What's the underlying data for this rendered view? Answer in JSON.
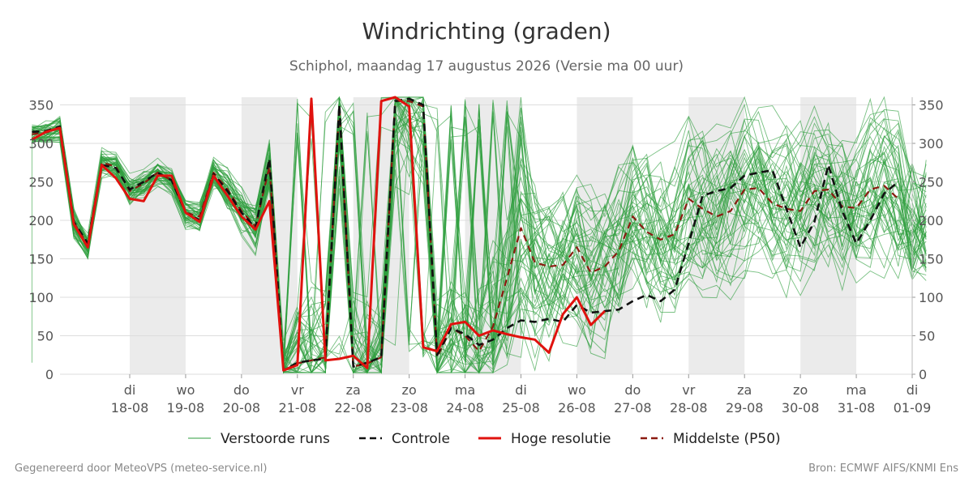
{
  "title": "Windrichting (graden)",
  "subtitle": "Schiphol, maandag 17 augustus 2026 (Versie ma 00 uur)",
  "footer": {
    "left": "Gegenereerd door MeteoVPS (meteo-service.nl)",
    "right": "Bron: ECMWF AIFS/KNMI Ens"
  },
  "colors": {
    "ensemble": "#2e9e3e",
    "control": "#111111",
    "high_res": "#e0120e",
    "median": "#8b1a10",
    "weekend_band": "#ebebeb",
    "grid": "#dddddd"
  },
  "chart_data": {
    "type": "line",
    "title": "Windrichting (graden)",
    "subtitle": "Schiphol, maandag 17 augustus 2026 (Versie ma 00 uur)",
    "xlabel": "",
    "ylabel": "",
    "x_unit": "days after 2026-08-17 00:00",
    "xlim": [
      0,
      15.25
    ],
    "ylim": [
      0,
      360
    ],
    "y_ticks": [
      0,
      50,
      100,
      150,
      200,
      250,
      300,
      350
    ],
    "y_axis_right": true,
    "grid": "horizontal",
    "legend_position": "bottom",
    "x_ticks": [
      {
        "t": 1.0,
        "day": "di",
        "date": "18-08"
      },
      {
        "t": 2.0,
        "day": "wo",
        "date": "19-08"
      },
      {
        "t": 3.0,
        "day": "do",
        "date": "20-08"
      },
      {
        "t": 4.0,
        "day": "vr",
        "date": "21-08"
      },
      {
        "t": 5.0,
        "day": "za",
        "date": "22-08"
      },
      {
        "t": 6.0,
        "day": "zo",
        "date": "23-08"
      },
      {
        "t": 7.0,
        "day": "ma",
        "date": "24-08"
      },
      {
        "t": 8.0,
        "day": "di",
        "date": "25-08"
      },
      {
        "t": 9.0,
        "day": "wo",
        "date": "26-08"
      },
      {
        "t": 10.0,
        "day": "do",
        "date": "27-08"
      },
      {
        "t": 11.0,
        "day": "vr",
        "date": "28-08"
      },
      {
        "t": 12.0,
        "day": "za",
        "date": "29-08"
      },
      {
        "t": 13.0,
        "day": "zo",
        "date": "30-08"
      },
      {
        "t": 14.0,
        "day": "ma",
        "date": "31-08"
      },
      {
        "t": 15.0,
        "day": "di",
        "date": "01-09"
      }
    ],
    "shaded_bands": [
      [
        1.0,
        2.0
      ],
      [
        3.0,
        4.0
      ],
      [
        5.0,
        6.0
      ],
      [
        7.0,
        8.0
      ],
      [
        9.0,
        10.0
      ],
      [
        11.0,
        12.0
      ],
      [
        13.0,
        14.0
      ]
    ],
    "legend": [
      {
        "key": "ensemble",
        "label": "Verstoorde runs",
        "style": "thin"
      },
      {
        "key": "control",
        "label": "Controle",
        "style": "dashed"
      },
      {
        "key": "high_res",
        "label": "Hoge resolutie",
        "style": "solid"
      },
      {
        "key": "median",
        "label": "Middelste (P50)",
        "style": "dashed"
      }
    ],
    "series": [
      {
        "name": "Hoge resolutie",
        "key": "high_res",
        "x": [
          -0.75,
          -0.5,
          -0.25,
          0.0,
          0.25,
          0.5,
          0.75,
          1.0,
          1.25,
          1.5,
          1.75,
          2.0,
          2.25,
          2.5,
          2.75,
          3.0,
          3.25,
          3.5,
          3.75,
          4.0,
          4.25,
          4.5,
          4.75,
          5.0,
          5.25,
          5.5,
          5.75,
          6.0,
          6.25,
          6.5,
          6.75,
          7.0,
          7.25,
          7.5,
          7.75,
          8.0,
          8.25,
          8.5,
          8.75,
          9.0,
          9.25,
          9.5,
          9.75,
          10.0
        ],
        "values": [
          305,
          315,
          320,
          195,
          165,
          272,
          255,
          228,
          225,
          258,
          258,
          210,
          198,
          258,
          232,
          205,
          188,
          225,
          5,
          12,
          358,
          18,
          20,
          24,
          8,
          355,
          360,
          348,
          35,
          30,
          65,
          68,
          50,
          57,
          52,
          48,
          45,
          28,
          78,
          100,
          64,
          82,
          null,
          null
        ]
      },
      {
        "name": "Controle",
        "key": "control",
        "x": [
          -0.75,
          -0.5,
          -0.25,
          0.0,
          0.25,
          0.5,
          0.75,
          1.0,
          1.25,
          1.5,
          1.75,
          2.0,
          2.25,
          2.5,
          2.75,
          3.0,
          3.25,
          3.5,
          3.75,
          4.0,
          4.25,
          4.5,
          4.75,
          5.0,
          5.25,
          5.5,
          5.75,
          6.0,
          6.25,
          6.5,
          6.75,
          7.0,
          7.25,
          7.5,
          7.75,
          8.0,
          8.25,
          8.5,
          8.75,
          9.0,
          9.25,
          9.5,
          9.75,
          10.0,
          10.25,
          10.5,
          10.75,
          11.0,
          11.25,
          11.5,
          11.75,
          12.0,
          12.25,
          12.5,
          12.75,
          13.0,
          13.25,
          13.5,
          13.75,
          14.0,
          14.25,
          14.5,
          14.75,
          15.0,
          15.25
        ],
        "values": [
          315,
          316,
          322,
          198,
          170,
          272,
          268,
          240,
          250,
          262,
          252,
          210,
          200,
          260,
          238,
          210,
          190,
          280,
          5,
          15,
          18,
          20,
          350,
          10,
          15,
          22,
          355,
          358,
          350,
          25,
          60,
          52,
          38,
          45,
          60,
          70,
          68,
          72,
          68,
          90,
          80,
          82,
          84,
          95,
          103,
          95,
          110,
          170,
          232,
          238,
          242,
          258,
          262,
          265,
          215,
          165,
          198,
          272,
          212,
          170,
          200,
          235,
          250,
          null,
          null
        ]
      },
      {
        "name": "Middelste (P50)",
        "key": "median",
        "x": [
          -0.75,
          -0.5,
          -0.25,
          0.0,
          0.25,
          0.5,
          0.75,
          1.0,
          1.25,
          1.5,
          1.75,
          2.0,
          2.25,
          2.5,
          2.75,
          3.0,
          3.25,
          3.5,
          3.75,
          4.0,
          4.25,
          4.5,
          4.75,
          5.0,
          5.25,
          5.5,
          5.75,
          6.0,
          6.25,
          6.5,
          6.75,
          7.0,
          7.25,
          7.5,
          7.75,
          8.0,
          8.25,
          8.5,
          8.75,
          9.0,
          9.25,
          9.5,
          9.75,
          10.0,
          10.25,
          10.5,
          10.75,
          11.0,
          11.25,
          11.5,
          11.75,
          12.0,
          12.25,
          12.5,
          12.75,
          13.0,
          13.25,
          13.5,
          13.75,
          14.0,
          14.25,
          14.5,
          14.75,
          15.0,
          15.25
        ],
        "values": [
          312,
          314,
          320,
          197,
          168,
          275,
          270,
          238,
          248,
          262,
          252,
          210,
          205,
          262,
          240,
          212,
          192,
          270,
          5,
          14,
          18,
          22,
          348,
          10,
          14,
          22,
          355,
          355,
          348,
          22,
          60,
          50,
          30,
          62,
          125,
          190,
          145,
          140,
          142,
          165,
          132,
          140,
          160,
          205,
          185,
          175,
          182,
          228,
          215,
          205,
          212,
          240,
          242,
          222,
          215,
          212,
          238,
          240,
          218,
          216,
          240,
          245,
          228,
          null,
          null
        ]
      }
    ]
  }
}
